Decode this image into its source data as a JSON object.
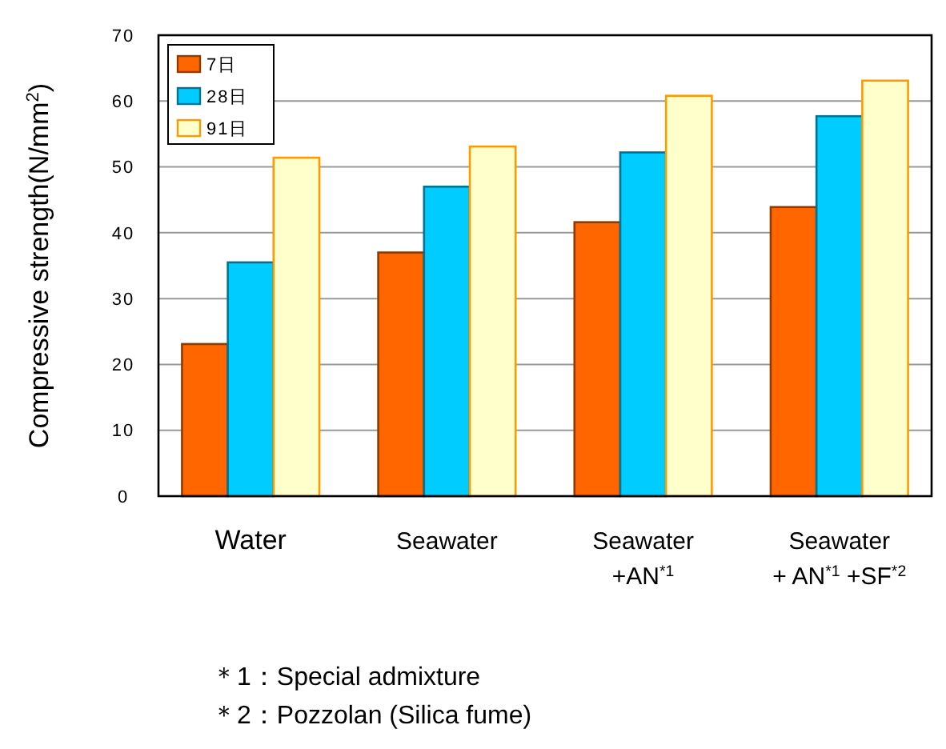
{
  "chart_data": {
    "type": "bar",
    "ylabel": "Compressive strength(N/mm$^{2}$)",
    "categories": [
      "Water",
      "Seawater",
      "Seawater\n+AN$^{*1}$",
      "Seawater\n+ AN$^{*1}$ +SF$^{*2}$"
    ],
    "series": [
      {
        "name": "7日",
        "color": "#ff6600",
        "values": [
          23.1,
          37.0,
          41.6,
          43.9
        ]
      },
      {
        "name": "28日",
        "color": "#00ccff",
        "values": [
          35.5,
          47.0,
          52.2,
          57.7
        ]
      },
      {
        "name": "91日",
        "color": "#ffffcc",
        "values": [
          51.4,
          53.1,
          60.8,
          63.1
        ]
      }
    ],
    "ylim": [
      0,
      70
    ],
    "yticks": [
      0,
      10,
      20,
      30,
      40,
      50,
      60,
      70
    ],
    "grid": "y",
    "legend": "top left",
    "annotations": [
      "＊1：Special admixture",
      "＊2：Pozzolan (Silica fume)"
    ]
  }
}
